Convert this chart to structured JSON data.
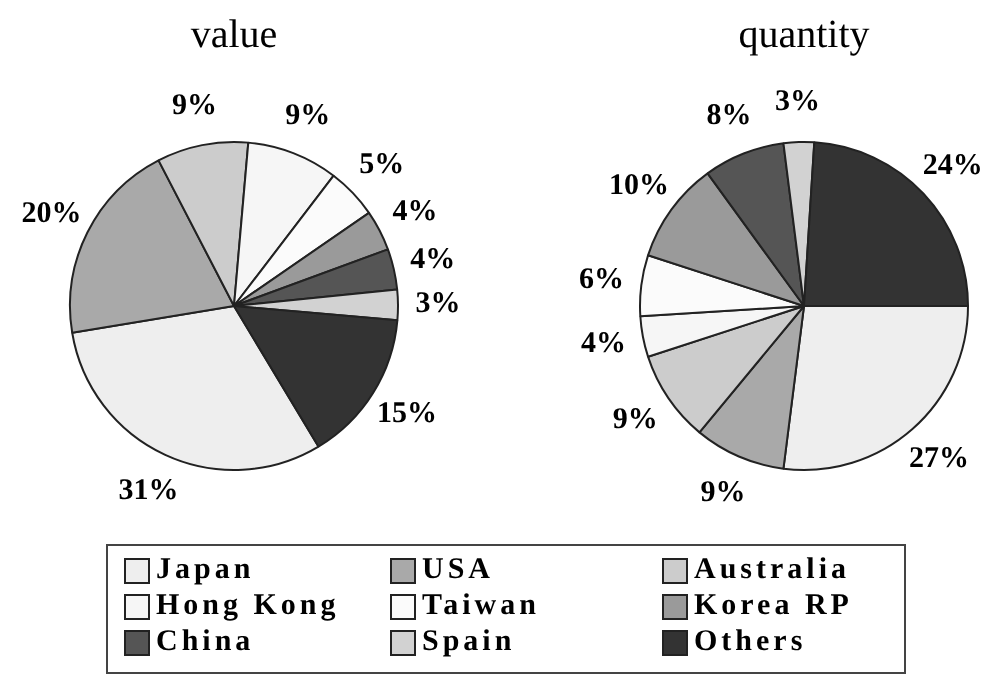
{
  "chart_data": {
    "type": "pie",
    "categories": [
      "Japan",
      "USA",
      "Australia",
      "Hong Kong",
      "Taiwan",
      "Korea RP",
      "China",
      "Spain",
      "Others"
    ],
    "colors": [
      "#eeeeee",
      "#a9a9a9",
      "#cccccc",
      "#f6f6f6",
      "#fbfbfb",
      "#9a9a9a",
      "#555555",
      "#d2d2d2",
      "#333333"
    ],
    "series": [
      {
        "name": "value",
        "values": [
          31,
          20,
          9,
          9,
          5,
          4,
          4,
          3,
          15
        ],
        "value_labels": [
          "31%",
          "20%",
          "9%",
          "9%",
          "5%",
          "4%",
          "4%",
          "3%",
          "15%"
        ]
      },
      {
        "name": "quantity",
        "values": [
          27,
          9,
          9,
          4,
          6,
          10,
          8,
          3,
          24
        ],
        "value_labels": [
          "27%",
          "9%",
          "9%",
          "4%",
          "6%",
          "10%",
          "8%",
          "3%",
          "24%"
        ]
      }
    ],
    "legend": "bottom"
  }
}
